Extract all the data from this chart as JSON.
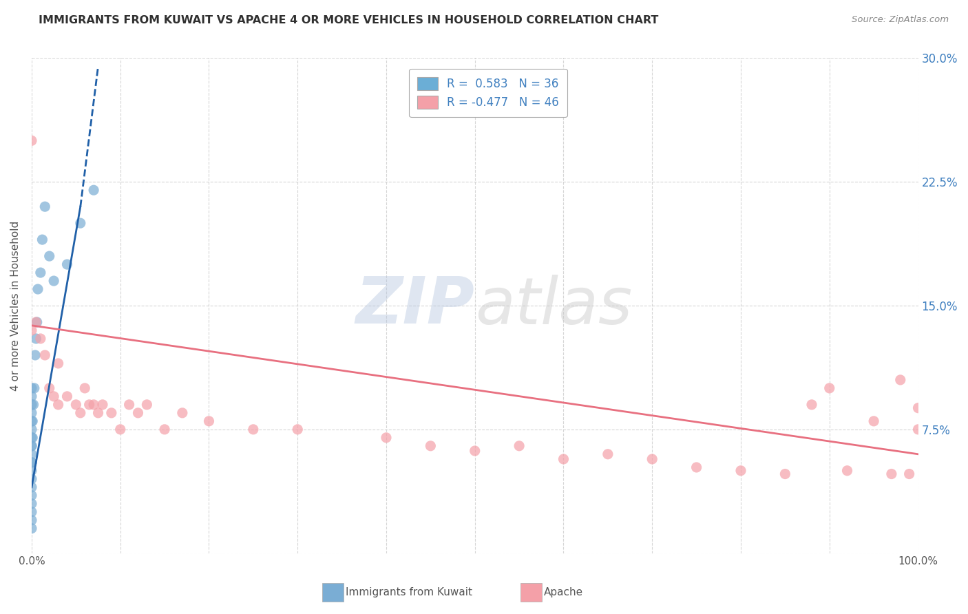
{
  "title": "IMMIGRANTS FROM KUWAIT VS APACHE 4 OR MORE VEHICLES IN HOUSEHOLD CORRELATION CHART",
  "source_text": "Source: ZipAtlas.com",
  "ylabel": "4 or more Vehicles in Household",
  "xmin": 0.0,
  "xmax": 1.0,
  "ymin": 0.0,
  "ymax": 0.3,
  "yticks": [
    0.0,
    0.075,
    0.15,
    0.225,
    0.3
  ],
  "right_ytick_labels": [
    "",
    "7.5%",
    "15.0%",
    "22.5%",
    "30.0%"
  ],
  "left_ytick_labels": [
    "",
    "",
    "",
    "",
    ""
  ],
  "xtick_vals": [
    0.0,
    0.1,
    0.2,
    0.3,
    0.4,
    0.5,
    0.6,
    0.7,
    0.8,
    0.9,
    1.0
  ],
  "xtick_labels": [
    "0.0%",
    "",
    "",
    "",
    "",
    "",
    "",
    "",
    "",
    "",
    "100.0%"
  ],
  "legend_entries": [
    {
      "label": "R =  0.583   N = 36"
    },
    {
      "label": "R = -0.477   N = 46"
    }
  ],
  "legend_patch_colors": [
    "#6baed6",
    "#f4a0a8"
  ],
  "watermark": "ZIPatlas",
  "kuwait_scatter_x": [
    0.0,
    0.0,
    0.0,
    0.0,
    0.0,
    0.0,
    0.0,
    0.0,
    0.0,
    0.0,
    0.0,
    0.0,
    0.0,
    0.0,
    0.0,
    0.0,
    0.0,
    0.0,
    0.0,
    0.0,
    0.001,
    0.001,
    0.002,
    0.003,
    0.004,
    0.005,
    0.006,
    0.007,
    0.01,
    0.012,
    0.015,
    0.02,
    0.025,
    0.04,
    0.055,
    0.07
  ],
  "kuwait_scatter_y": [
    0.015,
    0.02,
    0.025,
    0.03,
    0.035,
    0.04,
    0.045,
    0.05,
    0.055,
    0.06,
    0.065,
    0.07,
    0.075,
    0.08,
    0.085,
    0.09,
    0.095,
    0.1,
    0.055,
    0.065,
    0.07,
    0.08,
    0.09,
    0.1,
    0.12,
    0.13,
    0.14,
    0.16,
    0.17,
    0.19,
    0.21,
    0.18,
    0.165,
    0.175,
    0.2,
    0.22
  ],
  "apache_scatter_x": [
    0.0,
    0.0,
    0.005,
    0.01,
    0.015,
    0.02,
    0.025,
    0.03,
    0.03,
    0.04,
    0.05,
    0.055,
    0.06,
    0.065,
    0.07,
    0.075,
    0.08,
    0.09,
    0.1,
    0.11,
    0.12,
    0.13,
    0.15,
    0.17,
    0.2,
    0.25,
    0.3,
    0.4,
    0.45,
    0.5,
    0.55,
    0.6,
    0.65,
    0.7,
    0.75,
    0.8,
    0.85,
    0.88,
    0.9,
    0.92,
    0.95,
    0.97,
    0.98,
    0.99,
    1.0,
    1.0
  ],
  "apache_scatter_y": [
    0.25,
    0.135,
    0.14,
    0.13,
    0.12,
    0.1,
    0.095,
    0.115,
    0.09,
    0.095,
    0.09,
    0.085,
    0.1,
    0.09,
    0.09,
    0.085,
    0.09,
    0.085,
    0.075,
    0.09,
    0.085,
    0.09,
    0.075,
    0.085,
    0.08,
    0.075,
    0.075,
    0.07,
    0.065,
    0.062,
    0.065,
    0.057,
    0.06,
    0.057,
    0.052,
    0.05,
    0.048,
    0.09,
    0.1,
    0.05,
    0.08,
    0.048,
    0.105,
    0.048,
    0.075,
    0.088
  ],
  "kuwait_line_x0": 0.0,
  "kuwait_line_x1": 0.055,
  "kuwait_line_y0": 0.04,
  "kuwait_line_y1": 0.21,
  "kuwait_line_dash_x0": 0.055,
  "kuwait_line_dash_x1": 0.075,
  "kuwait_line_dash_y0": 0.21,
  "kuwait_line_dash_y1": 0.295,
  "apache_line_x0": 0.0,
  "apache_line_x1": 1.0,
  "apache_line_y0": 0.138,
  "apache_line_y1": 0.06,
  "kuwait_color": "#7aadd4",
  "apache_color": "#f4a0a8",
  "kuwait_line_color": "#2060a8",
  "apache_line_color": "#e87080",
  "background_color": "#ffffff",
  "grid_color": "#cccccc",
  "title_color": "#303030",
  "right_label_color": "#4080c0",
  "bottom_legend_kuwait": "Immigrants from Kuwait",
  "bottom_legend_apache": "Apache"
}
